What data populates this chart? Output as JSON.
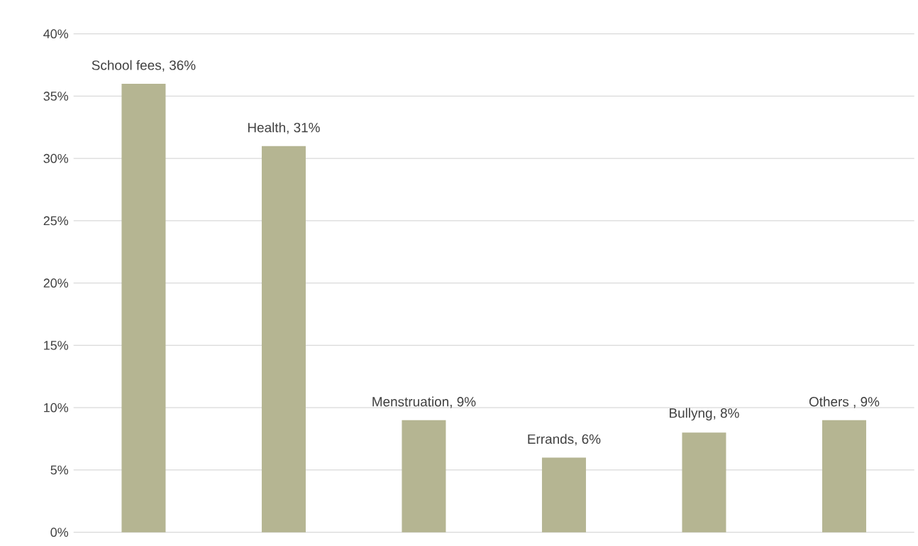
{
  "chart_data": {
    "type": "bar",
    "categories": [
      null,
      null,
      null,
      null,
      null,
      null
    ],
    "values": [
      36,
      31,
      9,
      6,
      8,
      9
    ],
    "value_labels": [
      "School fees, 36%",
      "Health, 31%",
      "Menstruation, 9%",
      "Errands, 6%",
      "Bullyng, 8%",
      "Others , 9%"
    ],
    "color": "#b5b592",
    "ylim": [
      0,
      40
    ],
    "yticks": [
      {
        "value": 0,
        "label": "0%"
      },
      {
        "value": 5,
        "label": "5%"
      },
      {
        "value": 10,
        "label": "10%"
      },
      {
        "value": 15,
        "label": "15%"
      },
      {
        "value": 20,
        "label": "20%"
      },
      {
        "value": 25,
        "label": "25%"
      },
      {
        "value": 30,
        "label": "30%"
      },
      {
        "value": 35,
        "label": "35%"
      },
      {
        "value": 40,
        "label": "40%"
      }
    ],
    "grid": "y"
  }
}
